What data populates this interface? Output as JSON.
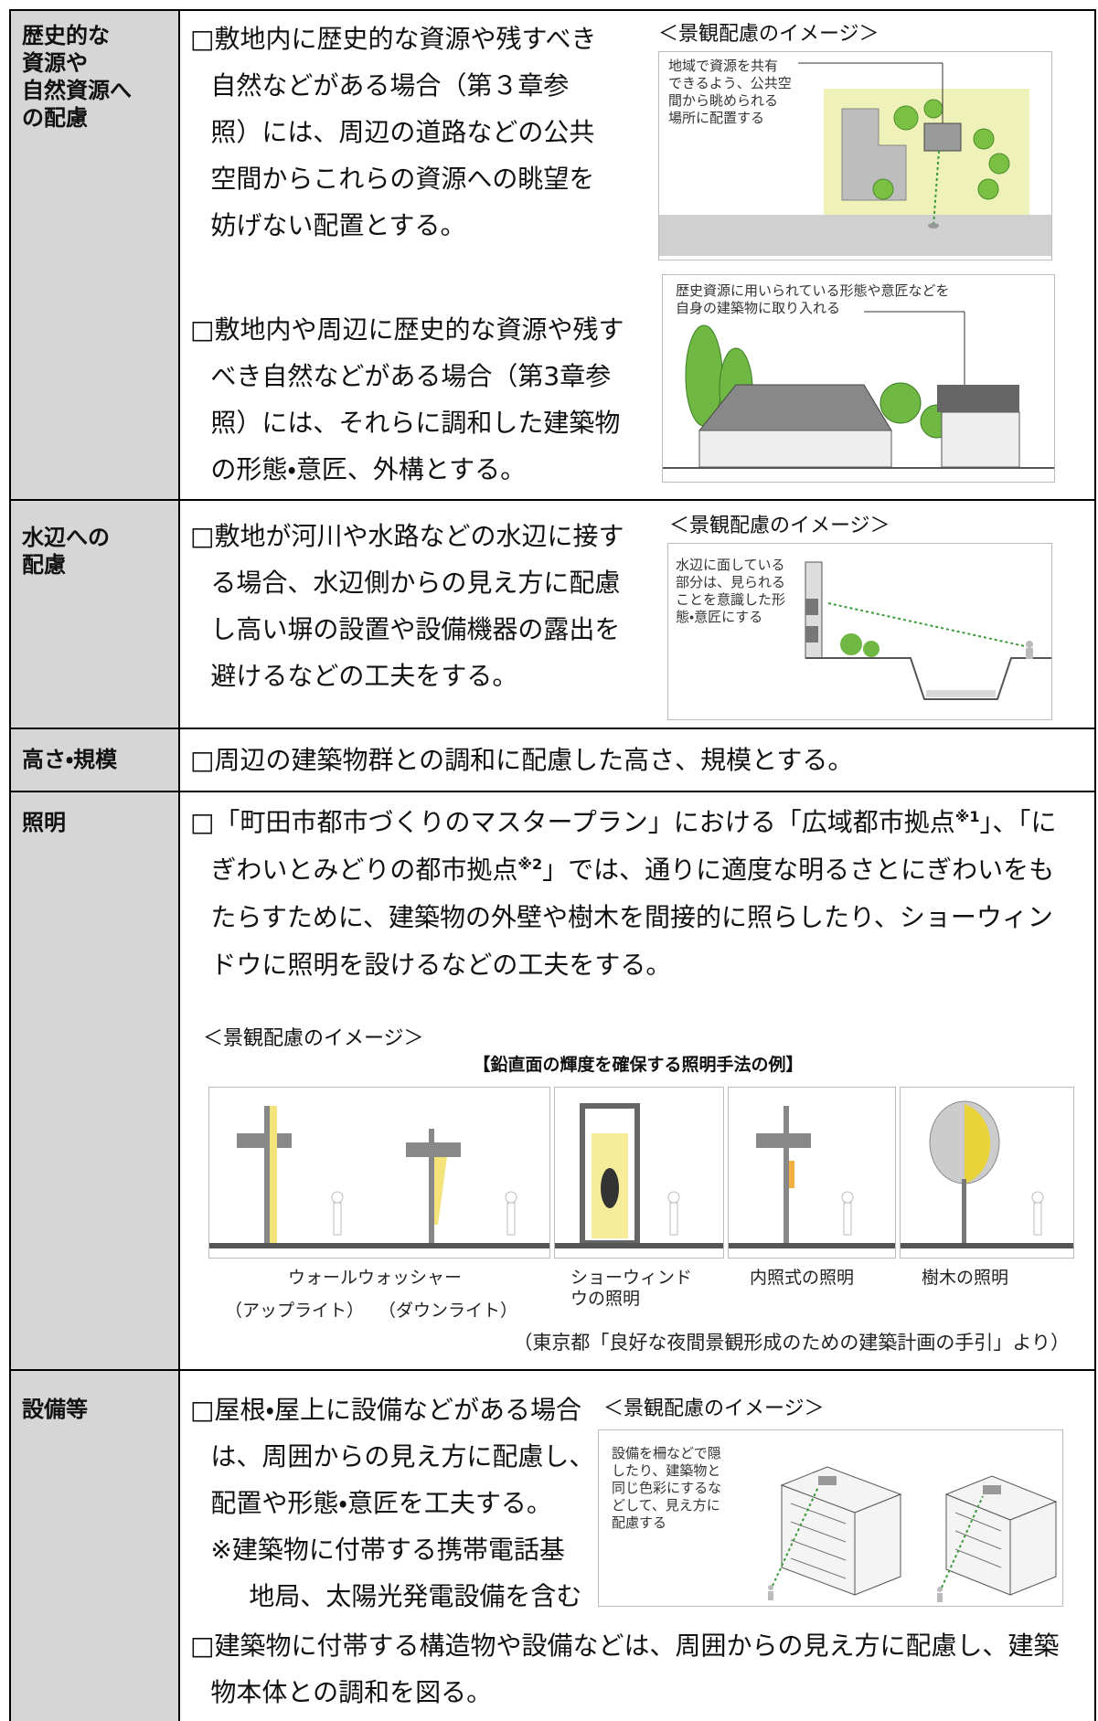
{
  "rows": [
    {
      "heading": [
        "歴史的な",
        "資源や",
        "自然資源へ",
        "の配慮"
      ],
      "items": [
        {
          "lines": [
            "□敷地内に歴史的な資源や残すべき",
            "自然などがある場合（第３章参",
            "照）には、周辺の道路などの公共",
            "空間からこれらの資源への眺望を",
            "妨げない配置とする。"
          ]
        },
        {
          "lines": [
            "□敷地内や周辺に歴史的な資源や残す",
            "べき自然などがある場合（第3章参",
            "照）には、それらに調和した建築物",
            "の形態・意匠、外構とする。"
          ]
        }
      ],
      "caption": "＜景観配慮のイメージ＞",
      "figures": [
        {
          "label": [
            "地域で資源を共有",
            "できるよう、公共空",
            "間から眺められる",
            "場所に配置する"
          ]
        },
        {
          "label": [
            "歴史資源に用いられている形態や意匠などを",
            "自身の建築物に取り入れる"
          ]
        }
      ]
    },
    {
      "heading": [
        "水辺への",
        "配慮"
      ],
      "items": [
        {
          "lines": [
            "□敷地が河川や水路などの水辺に接す",
            "る場合、水辺側からの見え方に配慮",
            "し高い塀の設置や設備機器の露出を",
            "避けるなどの工夫をする。"
          ]
        }
      ],
      "caption": "＜景観配慮のイメージ＞",
      "figures": [
        {
          "label": [
            "水辺に面している",
            "部分は、見られる",
            "ことを意識した形",
            "態・意匠にする"
          ]
        }
      ]
    },
    {
      "heading": [
        "高さ・規模"
      ],
      "items": [
        {
          "lines": [
            "□周辺の建築物群との調和に配慮した高さ、規模とする。"
          ]
        }
      ]
    },
    {
      "heading": [
        "照明"
      ],
      "items": [
        {
          "lines": [
            [
              "□「町田市都市づくりのマスタープラン」における「広域都市拠点",
              "※1",
              "」、「に"
            ],
            [
              "ぎわいとみどりの都市拠点",
              "※2",
              "」では、通りに適度な明るさとにぎわいをも"
            ],
            "たらすために、建築物の外壁や樹木を間接的に照らしたり、ショーウィン",
            "ドウに照明を設けるなどの工夫をする。"
          ]
        }
      ],
      "caption": "＜景観配慮のイメージ＞",
      "figure_title": "【鉛直面の輝度を確保する照明手法の例】",
      "panel_labels": [
        [
          "ウォールウォッシャー"
        ],
        [
          "ショーウィンド",
          "ウの照明"
        ],
        [
          "内照式の照明"
        ],
        [
          "樹木の照明"
        ]
      ],
      "sub_labels": [
        "（アップライト）",
        "（ダウンライト）"
      ],
      "source": "（東京都「良好な夜間景観形成のための建築計画の手引」より）"
    },
    {
      "heading": [
        "設備等"
      ],
      "items": [
        {
          "lines": [
            "□屋根・屋上に設備などがある場合",
            "は、周囲からの見え方に配慮し、",
            "配置や形態・意匠を工夫する。",
            "※建築物に付帯する携帯電話基",
            "地局、太陽光発電設備を含む"
          ]
        },
        {
          "lines": [
            "□建築物に付帯する構造物や設備などは、周囲からの見え方に配慮し、建築",
            "物本体との調和を図る。"
          ]
        }
      ],
      "caption": "＜景観配慮のイメージ＞",
      "figures": [
        {
          "label": [
            "設備を柵などで隠",
            "したり、建築物と",
            "同じ色彩にするな",
            "どして、見え方に",
            "配慮する"
          ]
        }
      ]
    }
  ]
}
